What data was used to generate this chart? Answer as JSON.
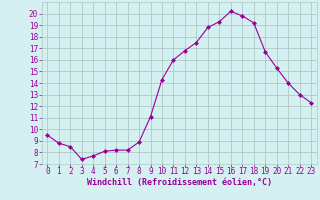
{
  "x": [
    0,
    1,
    2,
    3,
    4,
    5,
    6,
    7,
    8,
    9,
    10,
    11,
    12,
    13,
    14,
    15,
    16,
    17,
    18,
    19,
    20,
    21,
    22,
    23
  ],
  "y": [
    9.5,
    8.8,
    8.5,
    7.4,
    7.7,
    8.1,
    8.2,
    8.2,
    8.9,
    11.1,
    14.3,
    16.0,
    16.8,
    17.5,
    18.8,
    19.3,
    20.2,
    19.8,
    19.2,
    16.7,
    15.3,
    14.0,
    13.0,
    12.3
  ],
  "line_color": "#990099",
  "marker": "D",
  "marker_size": 2.0,
  "bg_color": "#d5f0f0",
  "grid_color": "#b0c8c8",
  "xlabel": "Windchill (Refroidissement éolien,°C)",
  "xlabel_color": "#990099",
  "tick_color": "#990099",
  "ylim": [
    7,
    21
  ],
  "xlim": [
    -0.5,
    23.5
  ],
  "yticks": [
    7,
    8,
    9,
    10,
    11,
    12,
    13,
    14,
    15,
    16,
    17,
    18,
    19,
    20
  ],
  "xticks": [
    0,
    1,
    2,
    3,
    4,
    5,
    6,
    7,
    8,
    9,
    10,
    11,
    12,
    13,
    14,
    15,
    16,
    17,
    18,
    19,
    20,
    21,
    22,
    23
  ],
  "font_family": "monospace",
  "tick_fontsize": 5.5,
  "xlabel_fontsize": 6.0
}
